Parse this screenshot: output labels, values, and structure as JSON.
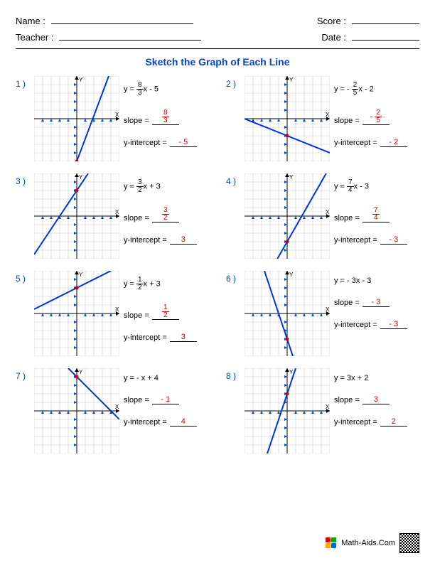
{
  "header": {
    "name_label": "Name :",
    "teacher_label": "Teacher :",
    "score_label": "Score :",
    "date_label": "Date :"
  },
  "title": "Sketch the Graph of Each Line",
  "labels": {
    "slope": "slope =",
    "yint": "y-intercept ="
  },
  "footer": {
    "site": "Math-Aids.Com"
  },
  "chart_style": {
    "width": 120,
    "height": 120,
    "xlim": [
      -5,
      5
    ],
    "ylim": [
      -5,
      5
    ],
    "grid_color": "#c8c8c8",
    "axis_color": "#000000",
    "line_color": "#0033dd",
    "line_width": 2,
    "point_color": "#cc0000",
    "tick_color": "#0044cc",
    "background_color": "#ffffff",
    "axis_label_x": "X",
    "axis_label_y": "Y"
  },
  "problems": [
    {
      "num": "1 )",
      "eq_pre": "y = ",
      "eq_num": "8",
      "eq_den": "3",
      "eq_post": "x - 5",
      "slope_num": "8",
      "slope_den": "3",
      "slope_sign": "",
      "yint": "- 5",
      "m": 2.6667,
      "b": -5
    },
    {
      "num": "2 )",
      "eq_pre": "y = - ",
      "eq_num": "2",
      "eq_den": "5",
      "eq_post": "x - 2",
      "slope_num": "2",
      "slope_den": "5",
      "slope_sign": "- ",
      "yint": "- 2",
      "m": -0.4,
      "b": -2
    },
    {
      "num": "3 )",
      "eq_pre": "y = ",
      "eq_num": "3",
      "eq_den": "2",
      "eq_post": "x + 3",
      "slope_num": "3",
      "slope_den": "2",
      "slope_sign": "",
      "yint": "3",
      "m": 1.5,
      "b": 3
    },
    {
      "num": "4 )",
      "eq_pre": "y = ",
      "eq_num": "7",
      "eq_den": "4",
      "eq_post": "x - 3",
      "slope_num": "7",
      "slope_den": "4",
      "slope_sign": "",
      "yint": "- 3",
      "m": 1.75,
      "b": -3
    },
    {
      "num": "5 )",
      "eq_pre": "y = ",
      "eq_num": "1",
      "eq_den": "2",
      "eq_post": "x + 3",
      "slope_num": "1",
      "slope_den": "2",
      "slope_sign": "",
      "yint": "3",
      "m": 0.5,
      "b": 3
    },
    {
      "num": "6 )",
      "eq_pre": "y = - 3x - 3",
      "eq_num": null,
      "eq_den": null,
      "eq_post": "",
      "slope_plain": "- 3",
      "yint": "- 3",
      "m": -3,
      "b": -3
    },
    {
      "num": "7 )",
      "eq_pre": "y = - x + 4",
      "eq_num": null,
      "eq_den": null,
      "eq_post": "",
      "slope_plain": "- 1",
      "yint": "4",
      "m": -1,
      "b": 4
    },
    {
      "num": "8 )",
      "eq_pre": "y = 3x + 2",
      "eq_num": null,
      "eq_den": null,
      "eq_post": "",
      "slope_plain": "3",
      "yint": "2",
      "m": 3,
      "b": 2
    }
  ]
}
